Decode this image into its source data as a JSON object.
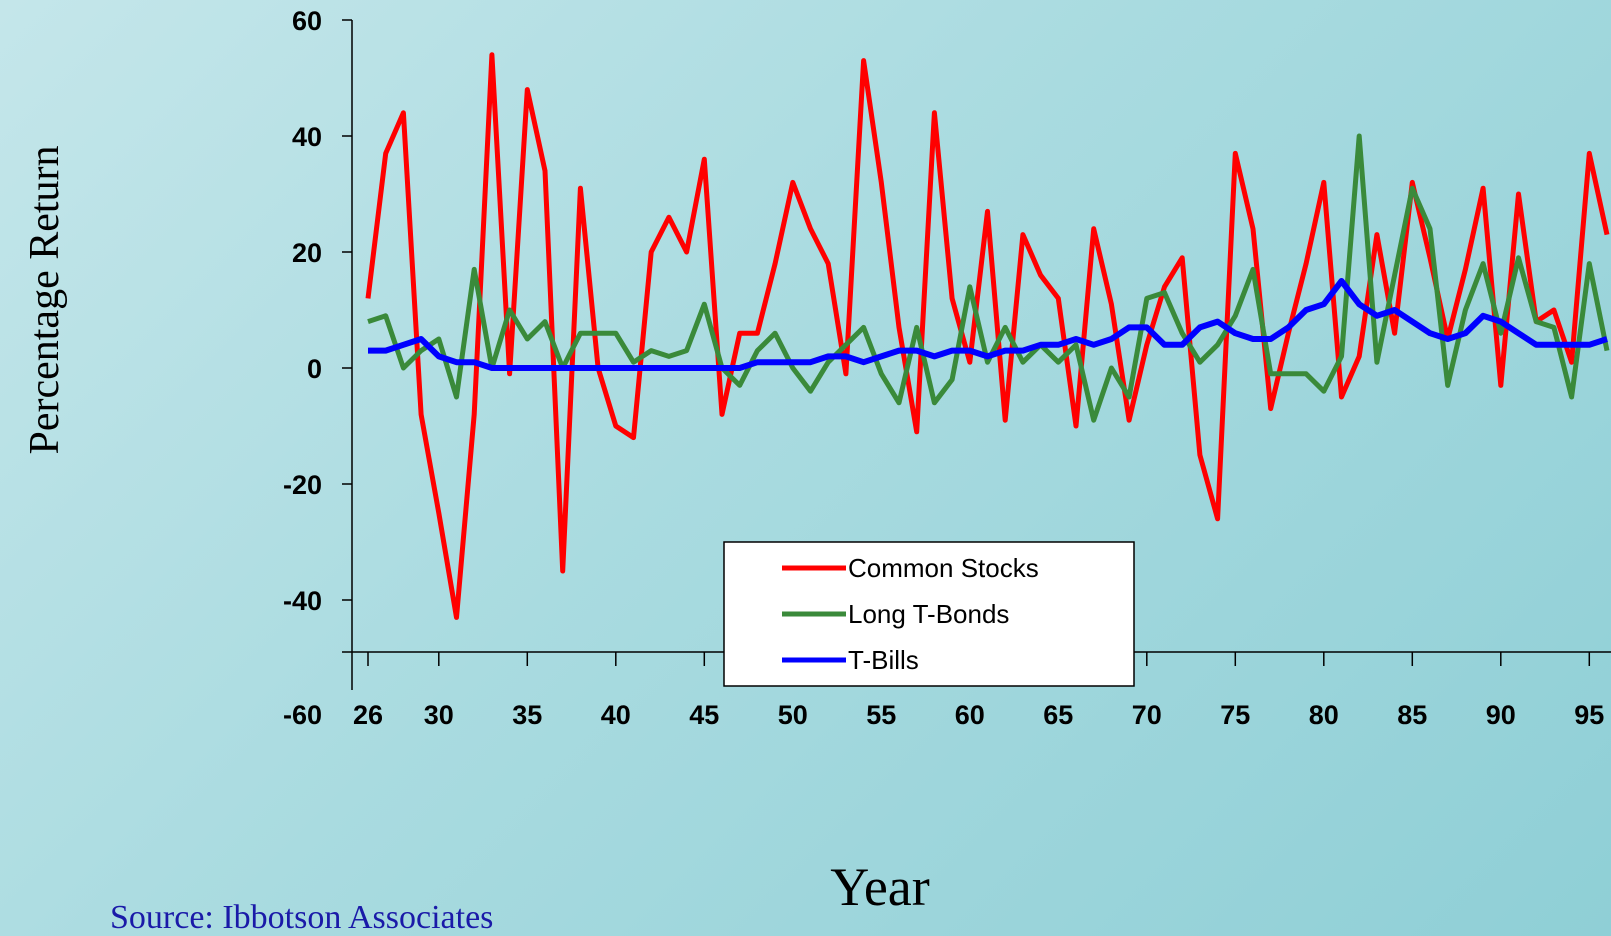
{
  "chart_data": {
    "type": "line",
    "xlabel": "Year",
    "ylabel": "Percentage Return",
    "source": "Source: Ibbotson Associates",
    "ylim": [
      -60,
      60
    ],
    "yticks": [
      60,
      40,
      20,
      0,
      -20,
      -40,
      -60
    ],
    "xticks": [
      26,
      30,
      35,
      40,
      45,
      50,
      55,
      60,
      65,
      70,
      75,
      80,
      85,
      90,
      95
    ],
    "x": [
      26,
      27,
      28,
      29,
      30,
      31,
      32,
      33,
      34,
      35,
      36,
      37,
      38,
      39,
      40,
      41,
      42,
      43,
      44,
      45,
      46,
      47,
      48,
      49,
      50,
      51,
      52,
      53,
      54,
      55,
      56,
      57,
      58,
      59,
      60,
      61,
      62,
      63,
      64,
      65,
      66,
      67,
      68,
      69,
      70,
      71,
      72,
      73,
      74,
      75,
      76,
      77,
      78,
      79,
      80,
      81,
      82,
      83,
      84,
      85,
      86,
      87,
      88,
      89,
      90,
      91,
      92,
      93,
      94,
      95,
      96
    ],
    "legend": {
      "position": "center-bottom"
    },
    "series": [
      {
        "name": "Common Stocks",
        "color": "#ff0000",
        "values": [
          12,
          37,
          44,
          -8,
          -25,
          -43,
          -8,
          54,
          -1,
          48,
          34,
          -35,
          31,
          0,
          -10,
          -12,
          20,
          26,
          20,
          36,
          -8,
          6,
          6,
          18,
          32,
          24,
          18,
          -1,
          53,
          32,
          7,
          -11,
          44,
          12,
          1,
          27,
          -9,
          23,
          16,
          12,
          -10,
          24,
          11,
          -9,
          4,
          14,
          19,
          -15,
          -26,
          37,
          24,
          -7,
          6,
          18,
          32,
          -5,
          2,
          23,
          6,
          32,
          19,
          5,
          17,
          31,
          -3,
          30,
          8,
          10,
          1,
          37,
          23
        ]
      },
      {
        "name": "Long T-Bonds",
        "color": "#3a8a3a",
        "values": [
          8,
          9,
          0,
          3,
          5,
          -5,
          17,
          0,
          10,
          5,
          8,
          0,
          6,
          6,
          6,
          1,
          3,
          2,
          3,
          11,
          0,
          -3,
          3,
          6,
          0,
          -4,
          1,
          4,
          7,
          -1,
          -6,
          7,
          -6,
          -2,
          14,
          1,
          7,
          1,
          4,
          1,
          4,
          -9,
          0,
          -5,
          12,
          13,
          6,
          1,
          4,
          9,
          17,
          -1,
          -1,
          -1,
          -4,
          2,
          40,
          1,
          16,
          31,
          24,
          -3,
          10,
          18,
          6,
          19,
          8,
          7,
          -5,
          18,
          3
        ]
      },
      {
        "name": "T-Bills",
        "color": "#0000ff",
        "values": [
          3,
          3,
          4,
          5,
          2,
          1,
          1,
          0,
          0,
          0,
          0,
          0,
          0,
          0,
          0,
          0,
          0,
          0,
          0,
          0,
          0,
          0,
          1,
          1,
          1,
          1,
          2,
          2,
          1,
          2,
          3,
          3,
          2,
          3,
          3,
          2,
          3,
          3,
          4,
          4,
          5,
          4,
          5,
          7,
          7,
          4,
          4,
          7,
          8,
          6,
          5,
          5,
          7,
          10,
          11,
          15,
          11,
          9,
          10,
          8,
          6,
          5,
          6,
          9,
          8,
          6,
          4,
          4,
          4,
          4,
          5
        ]
      }
    ]
  }
}
